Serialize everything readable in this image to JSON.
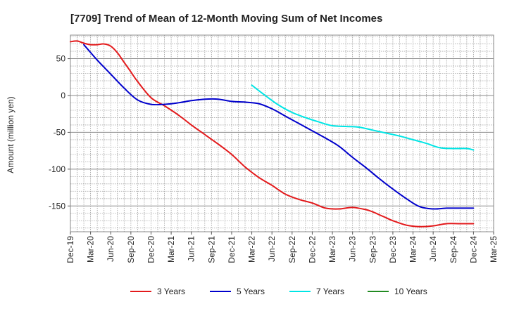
{
  "chart_data": {
    "type": "line",
    "title": "[7709]  Trend of Mean of 12-Month Moving Sum of Net Incomes",
    "xlabel": "",
    "ylabel": "Amount (million yen)",
    "ylim": [
      -185,
      82
    ],
    "yticks": [
      50,
      0,
      -50,
      -100,
      -150
    ],
    "xlim_months": [
      0,
      63
    ],
    "x_tick_labels": [
      "Dec-19",
      "Mar-20",
      "Jun-20",
      "Sep-20",
      "Dec-20",
      "Mar-21",
      "Jun-21",
      "Sep-21",
      "Dec-21",
      "Mar-22",
      "Jun-22",
      "Sep-22",
      "Dec-22",
      "Mar-23",
      "Jun-23",
      "Sep-23",
      "Dec-23",
      "Mar-24",
      "Jun-24",
      "Sep-24",
      "Dec-24",
      "Mar-25"
    ],
    "grid": true,
    "legend_position": "bottom",
    "series": [
      {
        "name": "3 Years",
        "color": "#e31a1c",
        "x": [
          0,
          1,
          2,
          3,
          4,
          5,
          6,
          7,
          8,
          9,
          10,
          12,
          14,
          16,
          18,
          20,
          22,
          24,
          26,
          28,
          30,
          32,
          34,
          36,
          38,
          40,
          42,
          44,
          45,
          46,
          47,
          48,
          50,
          52,
          54,
          56,
          58,
          60
        ],
        "y": [
          73,
          74,
          71,
          69,
          69,
          70,
          67,
          58,
          45,
          32,
          19,
          -3,
          -14,
          -26,
          -40,
          -53,
          -66,
          -80,
          -97,
          -111,
          -122,
          -134,
          -141,
          -146,
          -153,
          -154,
          -152,
          -155,
          -158,
          -162,
          -166,
          -170,
          -176,
          -178,
          -177,
          -174,
          -174,
          -174
        ]
      },
      {
        "name": "5 Years",
        "color": "#0000cc",
        "x": [
          2,
          4,
          6,
          8,
          10,
          12,
          14,
          16,
          18,
          20,
          22,
          24,
          26,
          28,
          30,
          32,
          34,
          36,
          38,
          40,
          42,
          44,
          46,
          48,
          50,
          52,
          54,
          56,
          58,
          60
        ],
        "y": [
          69,
          48,
          29,
          10,
          -6,
          -12,
          -12,
          -10,
          -7,
          -5,
          -5,
          -8,
          -9,
          -11,
          -18,
          -28,
          -38,
          -48,
          -58,
          -69,
          -84,
          -98,
          -113,
          -127,
          -140,
          -151,
          -154,
          -153,
          -153,
          -153
        ]
      },
      {
        "name": "7 Years",
        "color": "#00e5e5",
        "x": [
          27,
          29,
          31,
          33,
          35,
          37,
          39,
          41,
          43,
          45,
          47,
          49,
          51,
          53,
          55,
          57,
          59,
          60
        ],
        "y": [
          14,
          0,
          -13,
          -23,
          -30,
          -36,
          -41,
          -42,
          -43,
          -47,
          -51,
          -55,
          -60,
          -65,
          -71,
          -72,
          -72,
          -74
        ]
      },
      {
        "name": "10 Years",
        "color": "#228b22",
        "x": [],
        "y": []
      }
    ]
  }
}
